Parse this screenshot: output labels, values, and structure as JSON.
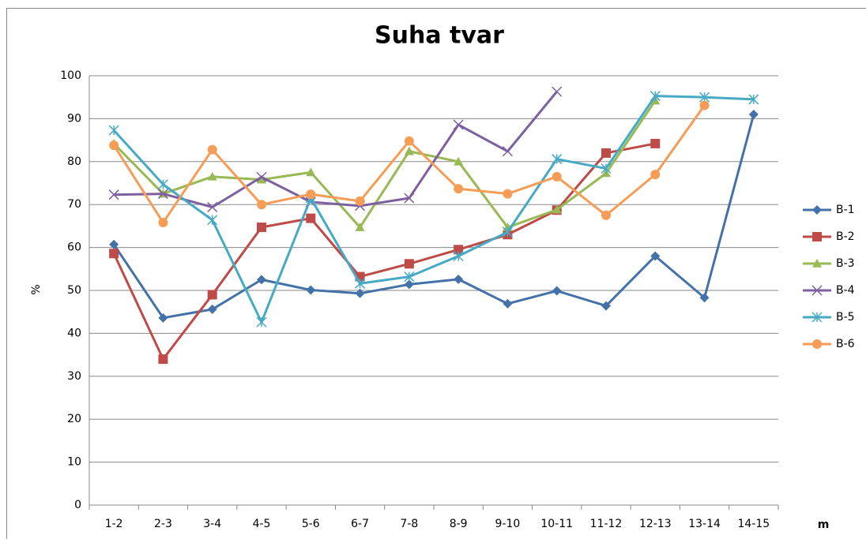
{
  "chart_data": {
    "type": "line",
    "title": "Suha tvar",
    "x_label": "m",
    "y_label": "%",
    "categories": [
      "1-2",
      "2-3",
      "3-4",
      "4-5",
      "5-6",
      "6-7",
      "7-8",
      "8-9",
      "9-10",
      "10-11",
      "11-12",
      "12-13",
      "13-14",
      "14-15"
    ],
    "series": [
      {
        "name": "B-1",
        "color": "#4472a8",
        "marker": "diamond",
        "values": [
          60.7,
          43.6,
          45.6,
          52.5,
          50.1,
          49.3,
          51.4,
          52.6,
          46.9,
          49.9,
          46.4,
          58.0,
          48.3,
          91.0
        ]
      },
      {
        "name": "B-2",
        "color": "#be4b48",
        "marker": "square",
        "values": [
          58.6,
          34.0,
          49.0,
          64.7,
          66.8,
          53.2,
          56.2,
          59.5,
          63.0,
          68.7,
          82.0,
          84.2,
          null,
          null
        ]
      },
      {
        "name": "B-3",
        "color": "#98b954",
        "marker": "triangle",
        "values": [
          84.2,
          72.5,
          76.5,
          75.8,
          77.5,
          64.7,
          82.4,
          80.0,
          64.7,
          68.8,
          77.3,
          94.2,
          null,
          null
        ]
      },
      {
        "name": "B-4",
        "color": "#7d60a0",
        "marker": "x",
        "values": [
          72.3,
          72.5,
          69.4,
          76.4,
          70.6,
          69.7,
          71.5,
          88.6,
          82.4,
          96.3,
          null,
          null,
          null,
          null
        ]
      },
      {
        "name": "B-5",
        "color": "#46aac5",
        "marker": "star",
        "values": [
          87.3,
          74.7,
          66.4,
          42.6,
          71.5,
          51.6,
          53.2,
          58.0,
          63.6,
          80.6,
          78.4,
          95.3,
          95.0,
          94.5
        ]
      },
      {
        "name": "B-6",
        "color": "#f59d56",
        "marker": "circle",
        "values": [
          83.8,
          65.8,
          82.8,
          70.0,
          72.4,
          70.8,
          84.8,
          73.7,
          72.5,
          76.5,
          67.5,
          77.0,
          93.1,
          null
        ]
      }
    ],
    "ylim": [
      0,
      100
    ],
    "yticks": [
      0,
      10,
      20,
      30,
      40,
      50,
      60,
      70,
      80,
      90,
      100
    ],
    "grid": true,
    "legend": "right"
  }
}
